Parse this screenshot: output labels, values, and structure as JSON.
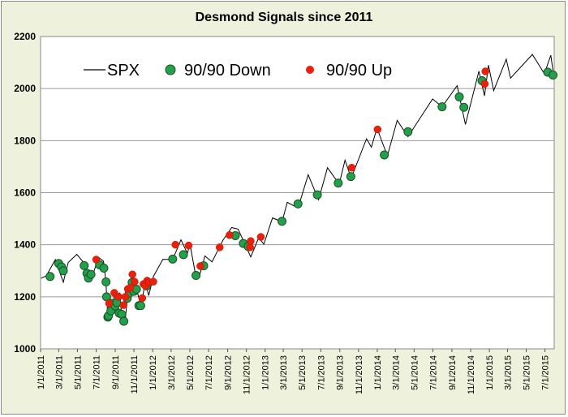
{
  "chart_data": {
    "type": "line",
    "title": "Desmond Signals since 2011",
    "xlabel": "",
    "ylabel": "",
    "x_range": [
      "2011-01-01",
      "2015-07-31"
    ],
    "ylim": [
      1000,
      2200
    ],
    "y_ticks": [
      1000,
      1200,
      1400,
      1600,
      1800,
      2000,
      2200
    ],
    "x_ticks": [
      "1/1/2011",
      "3/1/2011",
      "5/1/2011",
      "7/1/2011",
      "9/1/2011",
      "11/1/2011",
      "1/1/2012",
      "3/1/2012",
      "5/1/2012",
      "7/1/2012",
      "9/1/2012",
      "11/1/2012",
      "1/1/2013",
      "3/1/2013",
      "5/1/2013",
      "7/1/2013",
      "9/1/2013",
      "11/1/2013",
      "1/1/2014",
      "3/1/2014",
      "5/1/2014",
      "7/1/2014",
      "9/1/2014",
      "11/1/2014",
      "1/1/2015",
      "3/1/2015",
      "5/1/2015",
      "7/1/2015"
    ],
    "grid": "horizontal",
    "legend_position": "top-left",
    "colors": {
      "line": "#000000",
      "down": "#22a04a",
      "up": "#e8200c",
      "plot_bg": "#ffffff",
      "frame_bg": "#eef1dc"
    },
    "series": [
      {
        "name": "SPX",
        "type": "line",
        "points": [
          [
            "2011-01-03",
            1271
          ],
          [
            "2011-01-20",
            1281
          ],
          [
            "2011-02-18",
            1343
          ],
          [
            "2011-03-16",
            1256
          ],
          [
            "2011-04-01",
            1332
          ],
          [
            "2011-04-29",
            1363
          ],
          [
            "2011-05-20",
            1333
          ],
          [
            "2011-06-15",
            1265
          ],
          [
            "2011-06-30",
            1320
          ],
          [
            "2011-07-07",
            1353
          ],
          [
            "2011-07-25",
            1337
          ],
          [
            "2011-08-02",
            1254
          ],
          [
            "2011-08-08",
            1119
          ],
          [
            "2011-08-15",
            1204
          ],
          [
            "2011-08-19",
            1123
          ],
          [
            "2011-08-31",
            1218
          ],
          [
            "2011-09-09",
            1154
          ],
          [
            "2011-09-16",
            1216
          ],
          [
            "2011-09-22",
            1129
          ],
          [
            "2011-10-03",
            1099
          ],
          [
            "2011-10-10",
            1194
          ],
          [
            "2011-10-27",
            1284
          ],
          [
            "2011-11-04",
            1253
          ],
          [
            "2011-11-25",
            1159
          ],
          [
            "2011-12-07",
            1261
          ],
          [
            "2011-12-19",
            1205
          ],
          [
            "2012-01-03",
            1277
          ],
          [
            "2012-02-03",
            1344
          ],
          [
            "2012-03-06",
            1343
          ],
          [
            "2012-04-02",
            1419
          ],
          [
            "2012-04-23",
            1367
          ],
          [
            "2012-05-01",
            1405
          ],
          [
            "2012-05-18",
            1295
          ],
          [
            "2012-06-01",
            1278
          ],
          [
            "2012-06-19",
            1357
          ],
          [
            "2012-07-12",
            1334
          ],
          [
            "2012-08-17",
            1418
          ],
          [
            "2012-09-14",
            1466
          ],
          [
            "2012-10-05",
            1460
          ],
          [
            "2012-11-15",
            1353
          ],
          [
            "2012-12-11",
            1427
          ],
          [
            "2012-12-28",
            1402
          ],
          [
            "2013-01-25",
            1503
          ],
          [
            "2013-02-25",
            1488
          ],
          [
            "2013-03-14",
            1563
          ],
          [
            "2013-04-18",
            1541
          ],
          [
            "2013-05-21",
            1669
          ],
          [
            "2013-06-24",
            1573
          ],
          [
            "2013-07-23",
            1696
          ],
          [
            "2013-08-30",
            1633
          ],
          [
            "2013-09-18",
            1725
          ],
          [
            "2013-10-08",
            1656
          ],
          [
            "2013-11-27",
            1807
          ],
          [
            "2013-12-13",
            1775
          ],
          [
            "2013-12-31",
            1848
          ],
          [
            "2014-02-03",
            1741
          ],
          [
            "2014-03-07",
            1878
          ],
          [
            "2014-04-11",
            1815
          ],
          [
            "2014-06-30",
            1960
          ],
          [
            "2014-07-31",
            1930
          ],
          [
            "2014-09-18",
            2011
          ],
          [
            "2014-10-15",
            1862
          ],
          [
            "2014-11-28",
            2067
          ],
          [
            "2014-12-16",
            1972
          ],
          [
            "2014-12-29",
            2090
          ],
          [
            "2015-01-15",
            1992
          ],
          [
            "2015-02-25",
            2113
          ],
          [
            "2015-03-11",
            2040
          ],
          [
            "2015-05-21",
            2131
          ],
          [
            "2015-06-29",
            2057
          ],
          [
            "2015-07-20",
            2128
          ],
          [
            "2015-07-27",
            2068
          ]
        ]
      },
      {
        "name": "90/90 Down",
        "type": "scatter",
        "points": [
          [
            "2011-02-01",
            1278
          ],
          [
            "2011-03-01",
            1328
          ],
          [
            "2011-03-10",
            1315
          ],
          [
            "2011-03-16",
            1300
          ],
          [
            "2011-05-23",
            1320
          ],
          [
            "2011-06-01",
            1290
          ],
          [
            "2011-06-06",
            1272
          ],
          [
            "2011-06-14",
            1286
          ],
          [
            "2011-07-12",
            1323
          ],
          [
            "2011-07-26",
            1310
          ],
          [
            "2011-08-02",
            1257
          ],
          [
            "2011-08-04",
            1200
          ],
          [
            "2011-08-08",
            1122
          ],
          [
            "2011-08-10",
            1127
          ],
          [
            "2011-08-18",
            1146
          ],
          [
            "2011-08-23",
            1175
          ],
          [
            "2011-09-01",
            1165
          ],
          [
            "2011-09-06",
            1178
          ],
          [
            "2011-09-14",
            1137
          ],
          [
            "2011-09-22",
            1133
          ],
          [
            "2011-09-29",
            1106
          ],
          [
            "2011-10-10",
            1194
          ],
          [
            "2011-10-17",
            1215
          ],
          [
            "2011-10-26",
            1255
          ],
          [
            "2011-11-01",
            1221
          ],
          [
            "2011-11-09",
            1229
          ],
          [
            "2011-11-17",
            1166
          ],
          [
            "2011-11-23",
            1166
          ],
          [
            "2011-12-12",
            1242
          ],
          [
            "2012-03-06",
            1345
          ],
          [
            "2012-04-10",
            1362
          ],
          [
            "2012-05-21",
            1282
          ],
          [
            "2012-06-15",
            1319
          ],
          [
            "2012-09-26",
            1435
          ],
          [
            "2012-10-22",
            1405
          ],
          [
            "2012-11-07",
            1393
          ],
          [
            "2013-02-25",
            1490
          ],
          [
            "2013-04-18",
            1557
          ],
          [
            "2013-06-20",
            1592
          ],
          [
            "2013-08-27",
            1637
          ],
          [
            "2013-10-07",
            1662
          ],
          [
            "2014-01-24",
            1745
          ],
          [
            "2014-04-11",
            1834
          ],
          [
            "2014-07-31",
            1930
          ],
          [
            "2014-09-25",
            1968
          ],
          [
            "2014-10-10",
            1928
          ],
          [
            "2014-12-08",
            2030
          ],
          [
            "2015-07-10",
            2063
          ],
          [
            "2015-07-27",
            2052
          ]
        ]
      },
      {
        "name": "90/90 Up",
        "type": "scatter",
        "points": [
          [
            "2011-07-01",
            1343
          ],
          [
            "2011-08-12",
            1175
          ],
          [
            "2011-08-29",
            1215
          ],
          [
            "2011-09-12",
            1200
          ],
          [
            "2011-09-28",
            1168
          ],
          [
            "2011-10-04",
            1200
          ],
          [
            "2011-10-12",
            1230
          ],
          [
            "2011-10-20",
            1235
          ],
          [
            "2011-10-27",
            1286
          ],
          [
            "2011-11-03",
            1258
          ],
          [
            "2011-11-28",
            1195
          ],
          [
            "2011-12-02",
            1249
          ],
          [
            "2011-12-08",
            1242
          ],
          [
            "2011-12-14",
            1262
          ],
          [
            "2011-12-20",
            1256
          ],
          [
            "2012-01-03",
            1258
          ],
          [
            "2012-03-15",
            1400
          ],
          [
            "2012-04-27",
            1397
          ],
          [
            "2012-06-04",
            1318
          ],
          [
            "2012-08-06",
            1390
          ],
          [
            "2012-09-07",
            1437
          ],
          [
            "2012-11-13",
            1390
          ],
          [
            "2012-11-15",
            1414
          ],
          [
            "2012-12-18",
            1430
          ],
          [
            "2013-10-10",
            1696
          ],
          [
            "2014-01-02",
            1843
          ],
          [
            "2014-12-17",
            2018
          ],
          [
            "2014-12-19",
            2066
          ]
        ]
      }
    ]
  }
}
